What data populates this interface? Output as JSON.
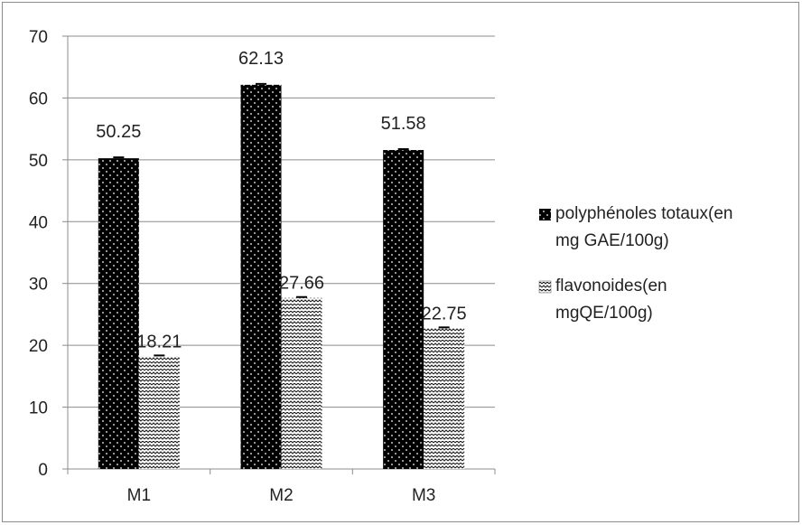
{
  "chart_data": {
    "type": "bar",
    "title": "",
    "xlabel": "",
    "ylabel": "",
    "categories": [
      "M1",
      "M2",
      "M3"
    ],
    "ylim": [
      0,
      70
    ],
    "y_ticks": [
      0,
      10,
      20,
      30,
      40,
      50,
      60,
      70
    ],
    "grid": true,
    "legend_position": "right",
    "series": [
      {
        "name_lines": [
          "polyphénoles totaux(en",
          "mg GAE/100g)"
        ],
        "values": [
          50.25,
          62.13,
          51.58
        ],
        "data_labels": [
          "50.25",
          "62.13",
          "51.58"
        ],
        "pattern": "black-with-white-dots",
        "color": "#000000"
      },
      {
        "name_lines": [
          "flavonoides(en",
          "mgQE/100g)"
        ],
        "values": [
          18.21,
          27.66,
          22.75
        ],
        "data_labels": [
          "18.21",
          "27.66",
          "22.75"
        ],
        "pattern": "white-with-dark-zigzag",
        "color": "#ffffff"
      }
    ]
  }
}
